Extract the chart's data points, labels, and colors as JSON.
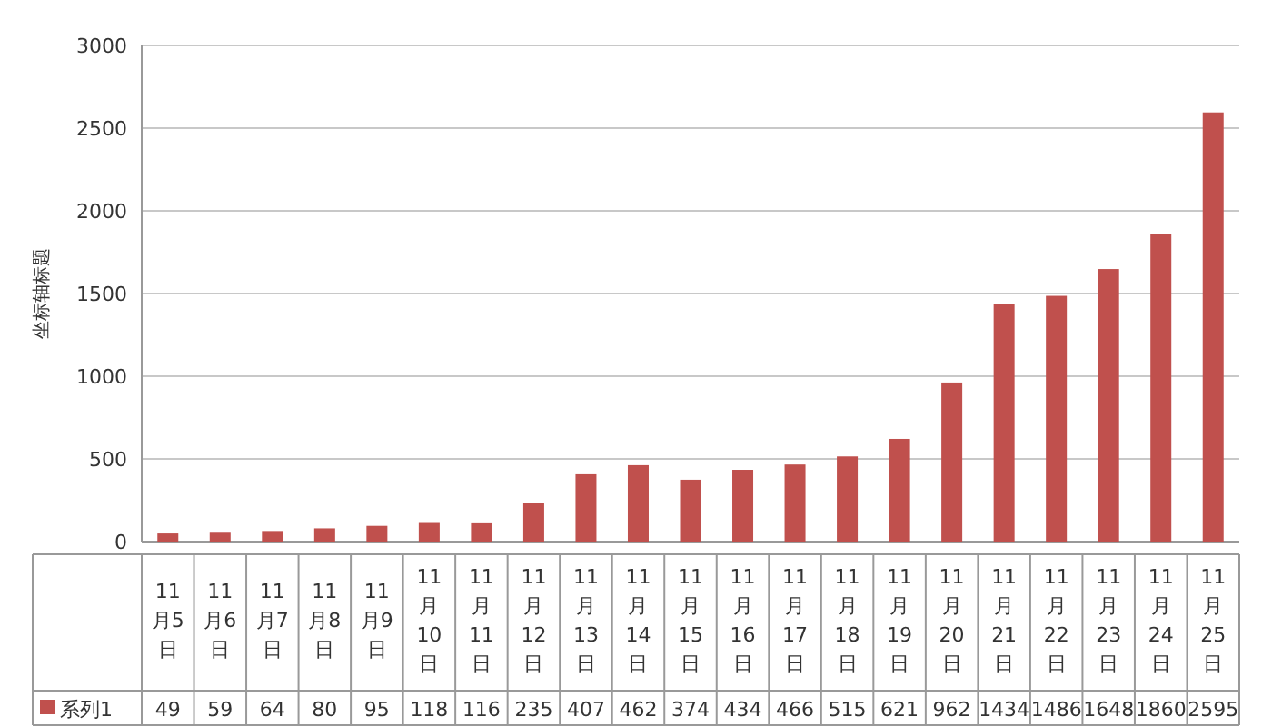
{
  "chart_data": {
    "type": "bar",
    "ylabel": "坐标轴标题",
    "categories": [
      "11月5日",
      "11月6日",
      "11月7日",
      "11月8日",
      "11月9日",
      "11月10日",
      "11月11日",
      "11月12日",
      "11月13日",
      "11月14日",
      "11月15日",
      "11月16日",
      "11月17日",
      "11月18日",
      "11月19日",
      "11月20日",
      "11月21日",
      "11月22日",
      "11月23日",
      "11月24日",
      "11月25日"
    ],
    "series": [
      {
        "name": "系列1",
        "color": "#c0504d",
        "values": [
          49,
          59,
          64,
          80,
          95,
          118,
          116,
          235,
          407,
          462,
          374,
          434,
          466,
          515,
          621,
          962,
          1434,
          1486,
          1648,
          1860,
          2595
        ]
      }
    ],
    "ylim": [
      0,
      3000
    ],
    "yticks": [
      0,
      500,
      1000,
      1500,
      2000,
      2500,
      3000
    ],
    "grid": "y",
    "legend": "bottom",
    "data_labels": true
  }
}
